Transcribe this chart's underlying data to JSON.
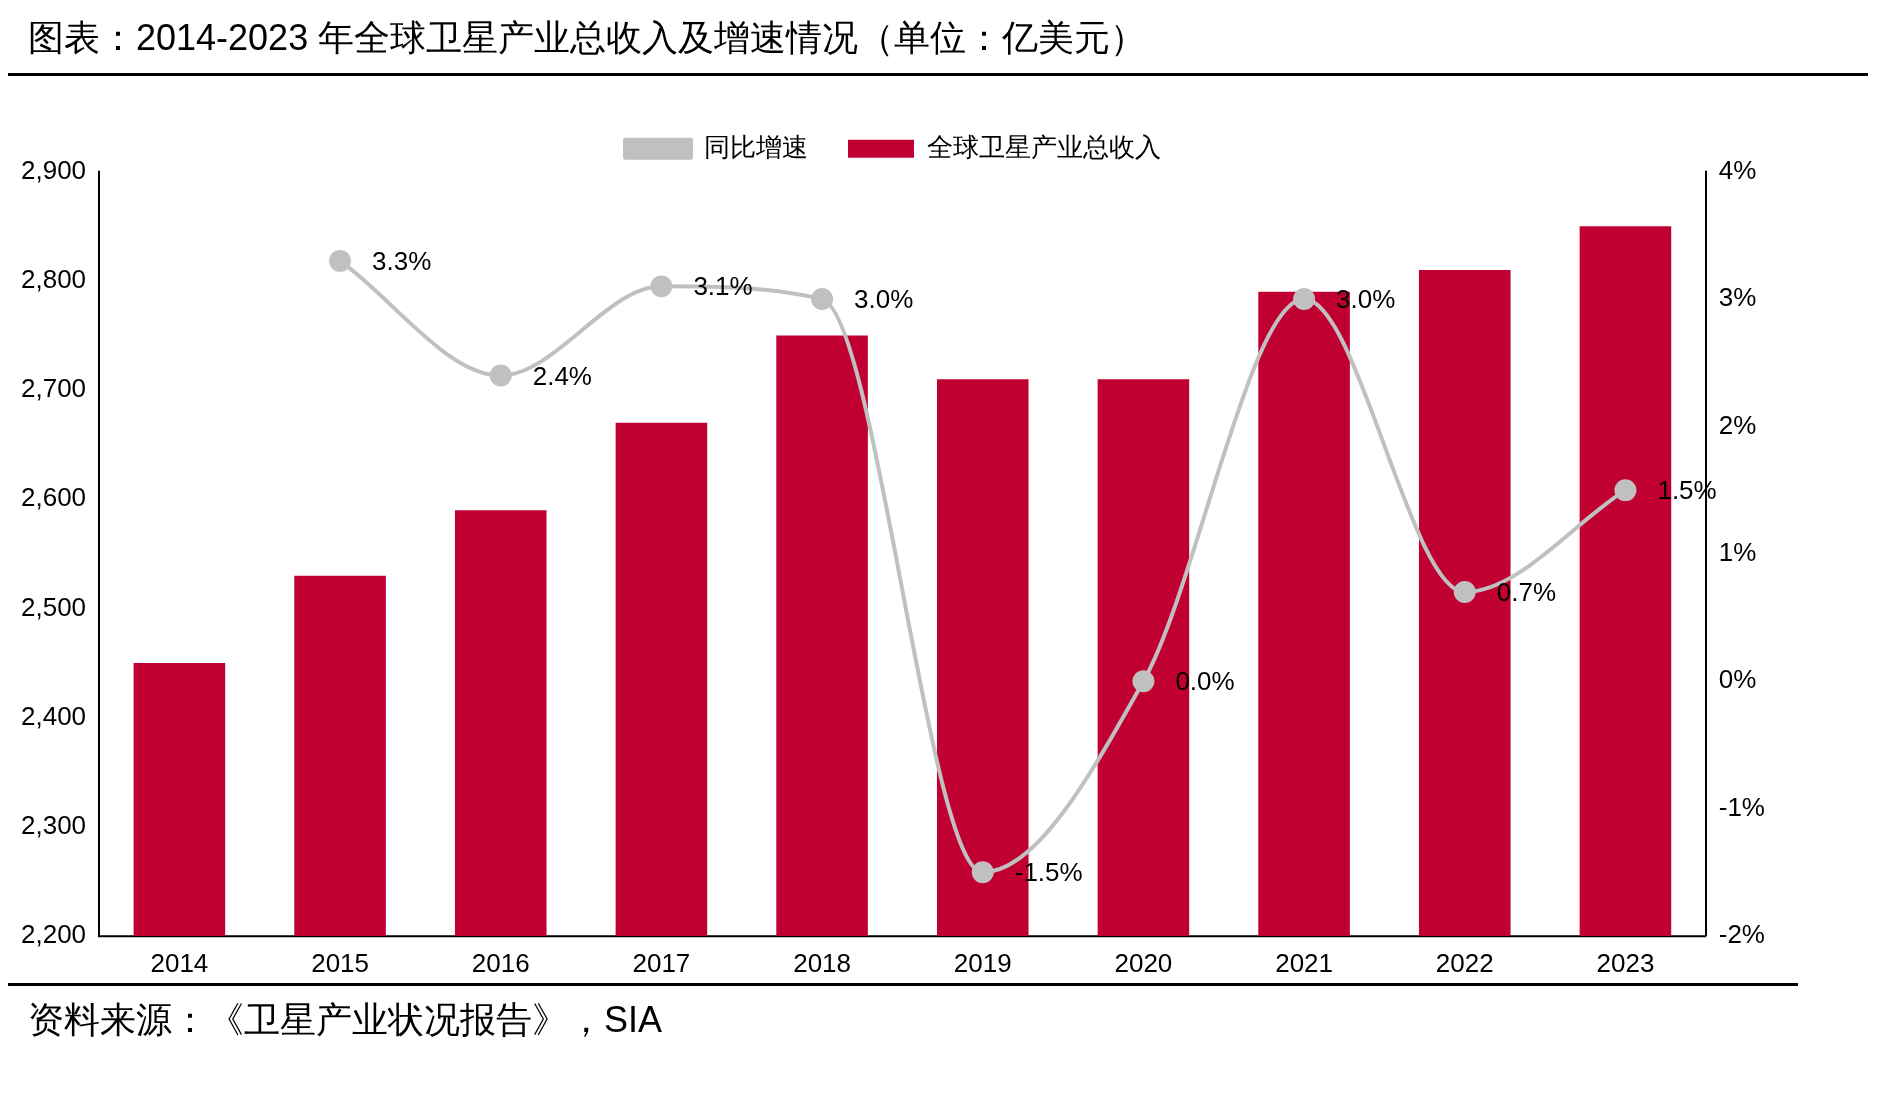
{
  "chart_data": {
    "type": "bar",
    "title": "图表：2014-2023 年全球卫星产业总收入及增速情况（单位：亿美元）",
    "categories": [
      "2014",
      "2015",
      "2016",
      "2017",
      "2018",
      "2019",
      "2020",
      "2021",
      "2022",
      "2023"
    ],
    "series": [
      {
        "name": "全球卫星产业总收入",
        "color": "#c00030",
        "values": [
          2450,
          2530,
          2590,
          2670,
          2750,
          2710,
          2710,
          2790,
          2810,
          2850
        ]
      },
      {
        "name": "同比增速",
        "type": "line",
        "axis": "y2",
        "color": "#c0c0c0",
        "marker": "circle",
        "values": [
          null,
          3.3,
          2.4,
          3.1,
          3.0,
          -1.5,
          0.0,
          3.0,
          0.7,
          1.5
        ],
        "value_labels": [
          null,
          "3.3%",
          "2.4%",
          "3.1%",
          "3.0%",
          "-1.5%",
          "0.0%",
          "3.0%",
          "0.7%",
          "1.5%"
        ]
      }
    ],
    "ylim": [
      2200,
      2900
    ],
    "yticks": [
      {
        "value": 2200,
        "label": "2,200"
      },
      {
        "value": 2300,
        "label": "2,300"
      },
      {
        "value": 2400,
        "label": "2,400"
      },
      {
        "value": 2500,
        "label": "2,500"
      },
      {
        "value": 2600,
        "label": "2,600"
      },
      {
        "value": 2700,
        "label": "2,700"
      },
      {
        "value": 2800,
        "label": "2,800"
      },
      {
        "value": 2900,
        "label": "2,900"
      }
    ],
    "y2lim": [
      -2,
      4
    ],
    "y2ticks": [
      {
        "value": -2,
        "label": "-2%"
      },
      {
        "value": -1,
        "label": "-1%"
      },
      {
        "value": 0,
        "label": "0%"
      },
      {
        "value": 1,
        "label": "1%"
      },
      {
        "value": 2,
        "label": "2%"
      },
      {
        "value": 3,
        "label": "3%"
      },
      {
        "value": 4,
        "label": "4%"
      }
    ],
    "grid": false,
    "legend": "top",
    "annotations": [
      "资料来源：《卫星产业状况报告》，SIA"
    ]
  }
}
